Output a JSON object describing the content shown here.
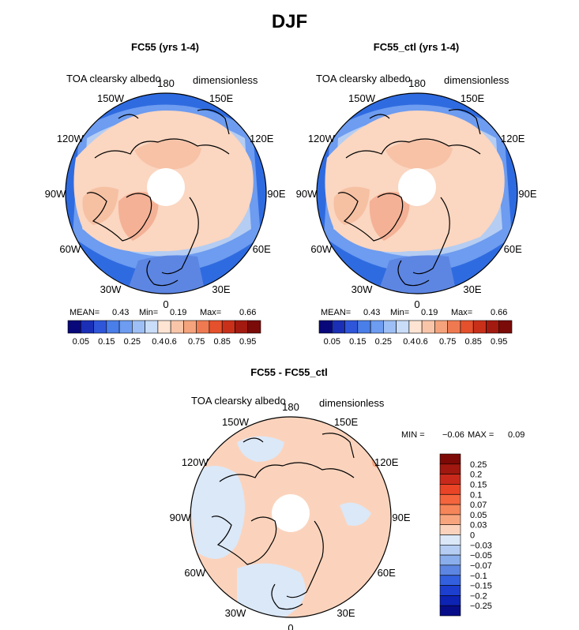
{
  "title": "DJF",
  "panels": [
    {
      "title": "FC55 (yrs 1-4)",
      "variable": "TOA clearsky albedo",
      "units": "dimensionless",
      "lon_labels": [
        "180",
        "150E",
        "120E",
        "90E",
        "60E",
        "30E",
        "0",
        "30W",
        "60W",
        "90W",
        "120W",
        "150W"
      ],
      "stats": {
        "mean_label": "MEAN=",
        "mean": "0.43",
        "min_label": "Min=",
        "min": "0.19",
        "max_label": "Max=",
        "max": "0.66"
      },
      "colorbar_ticks": [
        "0.05",
        "0.15",
        "0.25",
        "0.4",
        "0.6",
        "0.75",
        "0.85",
        "0.95"
      ]
    },
    {
      "title": "FC55_ctl (yrs 1-4)",
      "variable": "TOA clearsky albedo",
      "units": "dimensionless",
      "lon_labels": [
        "180",
        "150E",
        "120E",
        "90E",
        "60E",
        "30E",
        "0",
        "30W",
        "60W",
        "90W",
        "120W",
        "150W"
      ],
      "stats": {
        "mean_label": "MEAN=",
        "mean": "0.43",
        "min_label": "Min=",
        "min": "0.19",
        "max_label": "Max=",
        "max": "0.66"
      },
      "colorbar_ticks": [
        "0.05",
        "0.15",
        "0.25",
        "0.4",
        "0.6",
        "0.75",
        "0.85",
        "0.95"
      ]
    },
    {
      "title": "FC55 - FC55_ctl",
      "variable": "TOA clearsky albedo",
      "units": "dimensionless",
      "lon_labels": [
        "180",
        "150E",
        "120E",
        "90E",
        "60E",
        "30E",
        "0",
        "30W",
        "60W",
        "90W",
        "120W",
        "150W"
      ],
      "stats": {
        "min_label": "MIN =",
        "min": "−0.06",
        "max_label": "MAX =",
        "max": "0.09"
      },
      "colorbar_ticks": [
        "0.25",
        "0.2",
        "0.15",
        "0.1",
        "0.07",
        "0.05",
        "0.03",
        "0",
        "−0.03",
        "−0.05",
        "−0.07",
        "−0.1",
        "−0.15",
        "−0.2",
        "−0.25"
      ]
    }
  ],
  "colors": {
    "abs_scale": [
      "#08087a",
      "#1a2fb5",
      "#2f55d9",
      "#4a7ee8",
      "#6d9cf0",
      "#9dbff5",
      "#c9dcf8",
      "#fde4d3",
      "#f9c5a8",
      "#f5a37c",
      "#ef7a51",
      "#e4512c",
      "#c9301a",
      "#a31a10",
      "#7a0b08"
    ],
    "diff_scale": [
      "#7d0a06",
      "#a0180f",
      "#c9291a",
      "#ea4426",
      "#f4653d",
      "#f68559",
      "#f8a57e",
      "#fbd3bc",
      "#dbe8f8",
      "#b5cdf2",
      "#8aaeec",
      "#5d86e3",
      "#3260de",
      "#1d3fcf",
      "#0d23b3",
      "#070d88"
    ]
  }
}
